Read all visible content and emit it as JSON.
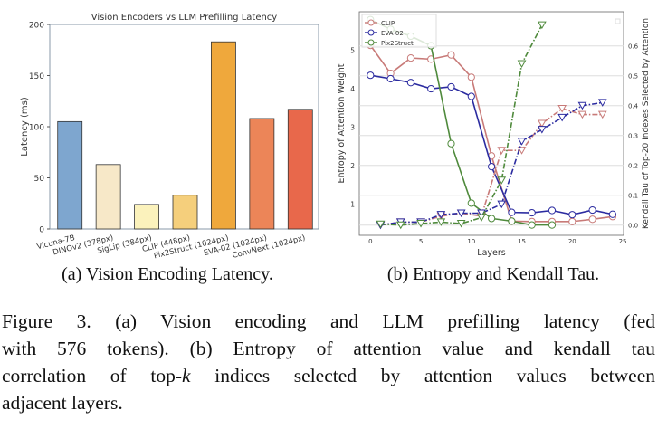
{
  "chart_data": [
    {
      "type": "bar",
      "title": "Vision Encoders vs LLM Prefilling Latency",
      "xlabel": "",
      "ylabel": "Latency (ms)",
      "ylim": [
        0,
        200
      ],
      "yticks": [
        0,
        50,
        100,
        150,
        200
      ],
      "categories": [
        "Vicuna-7B",
        "DINOv2 (378px)",
        "SigLip (384px)",
        "CLIP (448px)",
        "Pix2Struct (1024px)",
        "EVA-02 (1024px)",
        "ConvNext (1024px)"
      ],
      "values": [
        105,
        63,
        24,
        33,
        183,
        108,
        117
      ],
      "colors": [
        "#7ea6cf",
        "#f7e8c8",
        "#fbf2bc",
        "#f5cf7c",
        "#efa83c",
        "#ec8558",
        "#e8684b"
      ]
    },
    {
      "type": "line",
      "xlabel": "Layers",
      "ylabel": "Entropy of Attention Weight",
      "ylabel_right": "Kendall Tau of Top-20 Indexes Selected by Attention",
      "xlim": [
        -1,
        25
      ],
      "xticks": [
        0,
        5,
        10,
        15,
        20,
        25
      ],
      "ylim": [
        0.3,
        6.0
      ],
      "yticks": [
        1,
        2,
        3,
        4,
        5
      ],
      "ylim_right": [
        -0.03,
        0.7
      ],
      "yticks_right": [
        "0.0",
        "0.1",
        "0.2",
        "0.3",
        "0.4",
        "0.5",
        "0.6"
      ],
      "legend": [
        "CLIP",
        "EVA-02",
        "Pix2Struct"
      ],
      "legend_position": "top-left",
      "series": [
        {
          "name": "CLIP",
          "axis": "left",
          "style": "solid",
          "marker": "circle",
          "color": "#c87a78",
          "x": [
            0,
            2,
            4,
            6,
            8,
            10,
            12,
            14,
            16,
            18,
            20,
            22,
            24
          ],
          "y": [
            5.13,
            4.4,
            4.8,
            4.77,
            4.88,
            4.3,
            2.25,
            0.55,
            0.54,
            0.54,
            0.54,
            0.6,
            0.67
          ]
        },
        {
          "name": "EVA-02",
          "axis": "left",
          "style": "solid",
          "marker": "circle",
          "color": "#2b2ba0",
          "x": [
            0,
            2,
            4,
            6,
            8,
            10,
            12,
            14,
            16,
            18,
            20,
            22,
            24
          ],
          "y": [
            4.35,
            4.26,
            4.16,
            4.0,
            4.05,
            3.8,
            1.97,
            0.78,
            0.77,
            0.83,
            0.72,
            0.84,
            0.73
          ]
        },
        {
          "name": "Pix2Struct",
          "axis": "left",
          "style": "solid",
          "marker": "circle",
          "color": "#4f8a3c",
          "x": [
            0,
            2,
            4,
            6,
            8,
            10,
            12,
            14,
            16,
            18
          ],
          "y": [
            5.8,
            5.55,
            5.37,
            5.12,
            2.57,
            1.02,
            0.62,
            0.55,
            0.45,
            0.45
          ]
        },
        {
          "name": "CLIP",
          "axis": "right",
          "style": "dashdot",
          "marker": "triangle",
          "color": "#c87a78",
          "x": [
            1,
            3,
            5,
            7,
            9,
            11,
            13,
            15,
            17,
            19,
            21,
            23
          ],
          "y": [
            0.0,
            0.01,
            0.01,
            0.03,
            0.04,
            0.03,
            0.25,
            0.25,
            0.34,
            0.39,
            0.37,
            0.37
          ]
        },
        {
          "name": "EVA-02",
          "axis": "right",
          "style": "dashdot",
          "marker": "triangle",
          "color": "#2b2ba0",
          "x": [
            1,
            3,
            5,
            7,
            9,
            11,
            13,
            15,
            17,
            19,
            21,
            23
          ],
          "y": [
            0.0,
            0.01,
            0.01,
            0.035,
            0.04,
            0.04,
            0.07,
            0.28,
            0.32,
            0.36,
            0.4,
            0.41
          ]
        },
        {
          "name": "Pix2Struct",
          "axis": "right",
          "style": "dashdot",
          "marker": "triangle",
          "color": "#4f8a3c",
          "x": [
            1,
            3,
            5,
            7,
            9,
            11,
            13,
            15,
            17
          ],
          "y": [
            0.003,
            0.0,
            0.005,
            0.01,
            0.005,
            0.025,
            0.15,
            0.54,
            0.67
          ]
        }
      ]
    }
  ],
  "subcaptions": {
    "a": "(a) Vision Encoding Latency.",
    "b": "(b) Entropy and Kendall Tau."
  },
  "caption": {
    "line1": "Figure 3.  (a) Vision encoding and LLM prefilling latency (fed",
    "line2": "with 576 tokens). (b) Entropy of attention value and kendall tau",
    "line3a": "correlation of top-",
    "line3k": "k",
    "line3b": " indices selected by attention values between",
    "line4": "adjacent layers."
  }
}
